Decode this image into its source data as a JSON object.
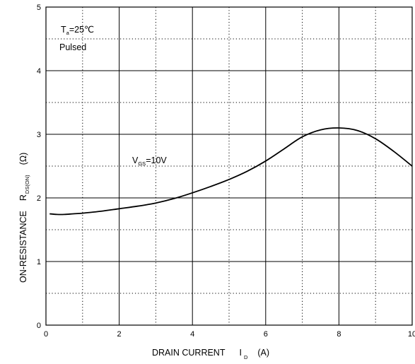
{
  "chart_data": {
    "type": "line",
    "title": "",
    "xlabel": {
      "main": "DRAIN CURRENT",
      "symbol": "I",
      "subscript": "D",
      "unit": "(A)"
    },
    "ylabel": {
      "main": "ON-RESISTANCE",
      "symbol": "R",
      "subscript": "DS(ON)",
      "unit": "(Ω)"
    },
    "xlim": [
      0,
      10
    ],
    "ylim": [
      0,
      5
    ],
    "x_ticks": [
      0,
      2,
      4,
      6,
      8,
      10
    ],
    "x_tick_labels": [
      "0",
      "2",
      "4",
      "6",
      "8",
      "10"
    ],
    "y_ticks": [
      0,
      1,
      2,
      3,
      4,
      5
    ],
    "y_tick_labels": [
      "0",
      "1",
      "2",
      "3",
      "4",
      "5"
    ],
    "grid": {
      "major": "solid",
      "minor": "dotted",
      "x_minor_step": 1,
      "y_minor_step": 0.5
    },
    "line_color": "#000000",
    "annotations": {
      "conditions": {
        "ta_symbol": "T",
        "ta_subscript": "a",
        "ta_value": "=25℃",
        "mode": "Pulsed"
      },
      "vgs": {
        "symbol": "V",
        "subscript": "GS",
        "value": "=10V"
      }
    },
    "series": [
      {
        "x": [
          0.1,
          0.3,
          0.5,
          0.75,
          1.0,
          1.5,
          2.0,
          2.5,
          3.0,
          3.5,
          4.0,
          4.5,
          5.0,
          5.5,
          6.0,
          6.5,
          7.0,
          7.5,
          8.0,
          8.5,
          9.0,
          9.5,
          10.0
        ],
        "y": [
          1.75,
          1.74,
          1.74,
          1.75,
          1.76,
          1.79,
          1.83,
          1.87,
          1.92,
          1.99,
          2.08,
          2.18,
          2.29,
          2.42,
          2.58,
          2.77,
          2.96,
          3.07,
          3.1,
          3.06,
          2.93,
          2.73,
          2.5
        ]
      }
    ]
  }
}
